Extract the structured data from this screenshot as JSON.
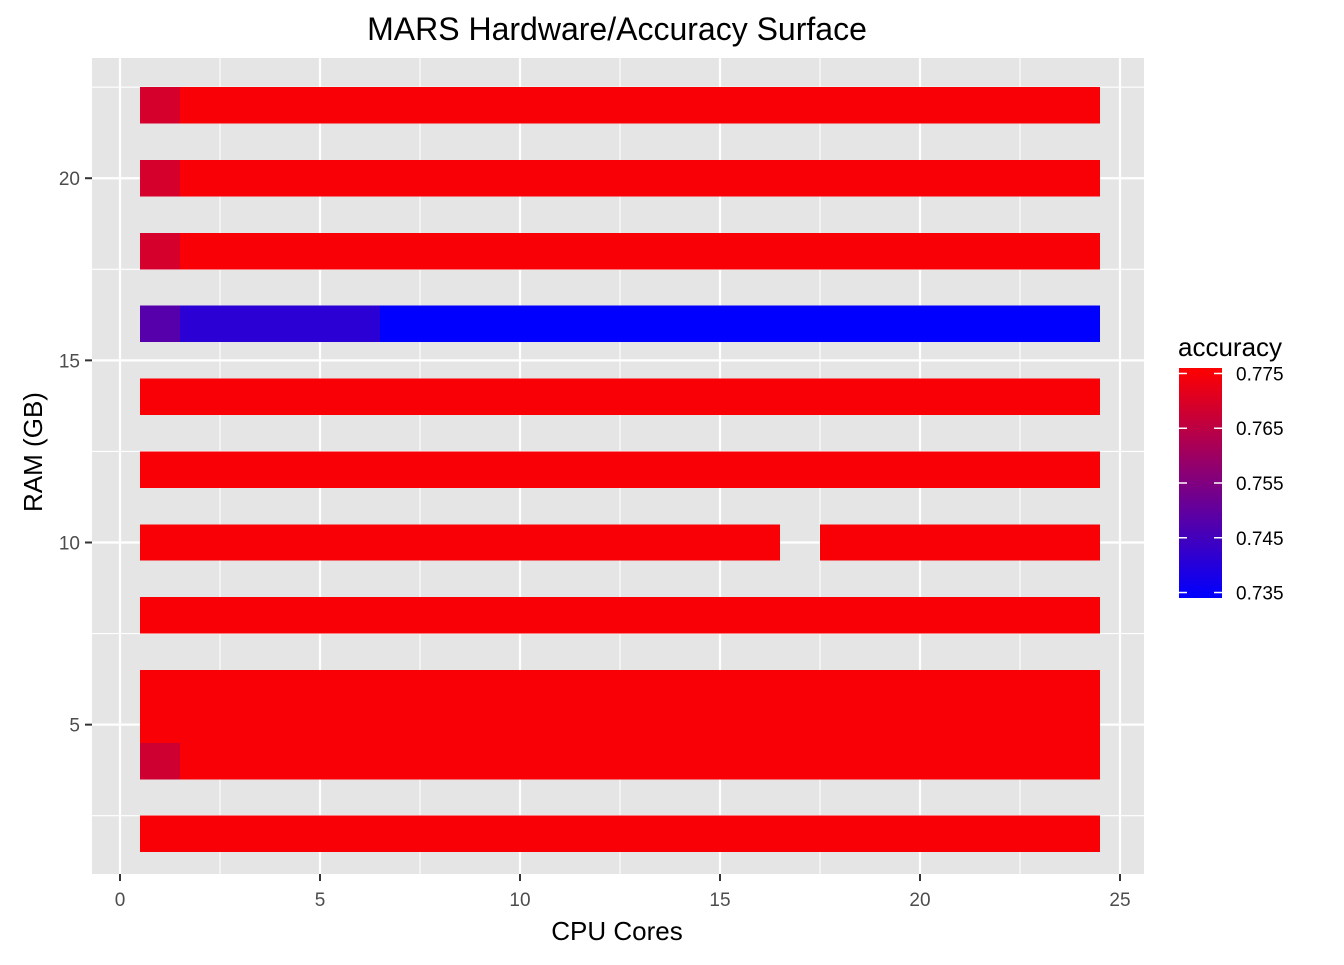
{
  "chart_data": {
    "type": "heatmap",
    "title": "MARS Hardware/Accuracy Surface",
    "xlabel": "CPU Cores",
    "ylabel": "RAM (GB)",
    "xlim": [
      -0.7,
      25.6
    ],
    "ylim": [
      0.9,
      23.3
    ],
    "x_ticks": [
      0,
      5,
      10,
      15,
      20,
      25
    ],
    "y_ticks": [
      5,
      10,
      15,
      20
    ],
    "grid": true,
    "tile_x_range": [
      0.5,
      24.5
    ],
    "tile_height": 1,
    "rows": [
      {
        "ram": 2,
        "segments": [
          {
            "from": 1,
            "to": 24,
            "accuracy": 0.775
          }
        ]
      },
      {
        "ram": 4,
        "segments": [
          {
            "from": 1,
            "to": 1,
            "accuracy": 0.768
          },
          {
            "from": 2,
            "to": 24,
            "accuracy": 0.775
          }
        ]
      },
      {
        "ram": 5,
        "segments": [
          {
            "from": 1,
            "to": 24,
            "accuracy": 0.775
          }
        ]
      },
      {
        "ram": 6,
        "segments": [
          {
            "from": 1,
            "to": 24,
            "accuracy": 0.775
          }
        ]
      },
      {
        "ram": 8,
        "segments": [
          {
            "from": 1,
            "to": 24,
            "accuracy": 0.775
          }
        ]
      },
      {
        "ram": 10,
        "segments": [
          {
            "from": 1,
            "to": 16,
            "accuracy": 0.775
          },
          {
            "from": 18,
            "to": 24,
            "accuracy": 0.775
          }
        ]
      },
      {
        "ram": 12,
        "segments": [
          {
            "from": 1,
            "to": 24,
            "accuracy": 0.775
          }
        ]
      },
      {
        "ram": 14,
        "segments": [
          {
            "from": 1,
            "to": 24,
            "accuracy": 0.775
          }
        ]
      },
      {
        "ram": 16,
        "segments": [
          {
            "from": 1,
            "to": 1,
            "accuracy": 0.748
          },
          {
            "from": 2,
            "to": 6,
            "accuracy": 0.741
          },
          {
            "from": 7,
            "to": 24,
            "accuracy": 0.734
          }
        ]
      },
      {
        "ram": 18,
        "segments": [
          {
            "from": 1,
            "to": 1,
            "accuracy": 0.769
          },
          {
            "from": 2,
            "to": 24,
            "accuracy": 0.775
          }
        ]
      },
      {
        "ram": 20,
        "segments": [
          {
            "from": 1,
            "to": 1,
            "accuracy": 0.769
          },
          {
            "from": 2,
            "to": 24,
            "accuracy": 0.775
          }
        ]
      },
      {
        "ram": 22,
        "segments": [
          {
            "from": 1,
            "to": 1,
            "accuracy": 0.769
          },
          {
            "from": 2,
            "to": 24,
            "accuracy": 0.775
          }
        ]
      }
    ],
    "legend": {
      "title": "accuracy",
      "position": "right",
      "min": 0.734,
      "max": 0.776,
      "ticks": [
        0.775,
        0.765,
        0.755,
        0.745,
        0.735
      ],
      "tick_labels": [
        "0.775",
        "0.765",
        "0.755",
        "0.745",
        "0.735"
      ],
      "low_color": "#0000ff",
      "high_color": "#ff0000"
    },
    "colors": {
      "panel_background": "#e5e5e5",
      "grid_line": "#ffffff",
      "text": "#4d4d4d",
      "title_text": "#000000"
    }
  }
}
